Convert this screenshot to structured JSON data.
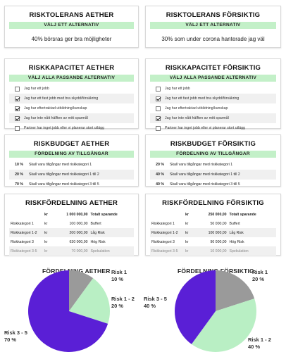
{
  "tolerance": {
    "aether": {
      "title": "RISKTOLERANS AETHER",
      "subtitle": "VÄLJ ETT ALTERNATIV",
      "answer": "40% börsras ger bra möjligheter"
    },
    "forsiktig": {
      "title": "RISKTOLERANS FÖRSIKTIG",
      "subtitle": "VÄLJ ETT ALTERNATIV",
      "answer": "30% som under corona hanterade jag väl"
    }
  },
  "capacity": {
    "aether": {
      "title": "RISKKAPACITET AETHER",
      "subtitle": "VÄLJ ALLA PASSANDE ALTERNATIV",
      "items": [
        {
          "label": "Jag har ett jobb",
          "checked": false
        },
        {
          "label": "Jag har ett fast jobb med bra skydd/försäkring",
          "checked": true
        },
        {
          "label": "Jag har eftertraktad utbildning/kunskap",
          "checked": true
        },
        {
          "label": "Jag har inte nått hälften av mitt sparmål",
          "checked": true
        },
        {
          "label": "Partner har inget jobb eller vi planerar stort utlägg",
          "checked": false
        }
      ]
    },
    "forsiktig": {
      "title": "RISKKAPACITET FÖRSIKTIG",
      "subtitle": "VÄLJ ALLA PASSANDE ALTERNATIV",
      "items": [
        {
          "label": "Jag har ett jobb",
          "checked": false
        },
        {
          "label": "Jag har ett fast jobb med bra skydd/försäkring",
          "checked": true
        },
        {
          "label": "Jag har eftertraktad utbildning/kunskap",
          "checked": false
        },
        {
          "label": "Jag har inte nått hälften av mitt sparmål",
          "checked": true
        },
        {
          "label": "Partner har inget jobb eller vi planerar stort utlägg",
          "checked": false
        }
      ]
    }
  },
  "budget": {
    "aether": {
      "title": "RISKBUDGET AETHER",
      "subtitle": "FÖRDELNING AV TILLGÅNGAR",
      "rows": [
        {
          "pct": "10 %",
          "text": "Skall vara tillgångar med riskkategori 1"
        },
        {
          "pct": "20 %",
          "text": "Skall vara tillgångar med riskkategori 1 till 2"
        },
        {
          "pct": "70 %",
          "text": "Skall vara tillgångar med riskkategori 3 till 5"
        }
      ]
    },
    "forsiktig": {
      "title": "RISKBUDGET FÖRSIKTIG",
      "subtitle": "FÖRDELNING AV TILLGÅNGAR",
      "rows": [
        {
          "pct": "20 %",
          "text": "Skall vara tillgångar med riskkategori 1"
        },
        {
          "pct": "40 %",
          "text": "Skall vara tillgångar med riskkategori 1 till 2"
        },
        {
          "pct": "40 %",
          "text": "Skall vara tillgångar med riskkategori 3 till 5"
        }
      ]
    }
  },
  "distribution": {
    "aether": {
      "title": "RISKFÖRDELNING AETHER",
      "header": {
        "unit": "kr",
        "amount": "1 000 000,00",
        "label": "Totalt sparande"
      },
      "rows": [
        {
          "cat": "Riskkategori 1",
          "unit": "kr",
          "amount": "100 000,00",
          "desc": "Buffert"
        },
        {
          "cat": "Riskkategori 1-2",
          "unit": "kr",
          "amount": "200 000,00",
          "desc": "Låg Risk"
        },
        {
          "cat": "Riskkategori 3",
          "unit": "kr",
          "amount": "630 000,00",
          "desc": "Hög Risk"
        },
        {
          "cat": "Riskkategori 3-5",
          "unit": "kr",
          "amount": "70 000,00",
          "desc": "Spekulation"
        }
      ]
    },
    "forsiktig": {
      "title": "RISKFÖRDELNING FÖRSIKTIG",
      "header": {
        "unit": "kr",
        "amount": "250 000,00",
        "label": "Totalt sparande"
      },
      "rows": [
        {
          "cat": "Riskkategori 1",
          "unit": "kr",
          "amount": "50 000,00",
          "desc": "Buffert"
        },
        {
          "cat": "Riskkategori 1-2",
          "unit": "kr",
          "amount": "100 000,00",
          "desc": "Låg Risk"
        },
        {
          "cat": "Riskkategori 3",
          "unit": "kr",
          "amount": "90 000,00",
          "desc": "Hög Risk"
        },
        {
          "cat": "Riskkategori 3-5",
          "unit": "kr",
          "amount": "10 000,00",
          "desc": "Spekulation"
        }
      ]
    }
  },
  "colors": {
    "risk1": "#9a9a9a",
    "risk12": "#b9efc4",
    "risk35": "#5a1fd6",
    "accent": "#c3f0c8"
  },
  "chart_data": [
    {
      "type": "pie",
      "title": "FÖRDELNING AETHER",
      "labels": [
        "Risk 1",
        "Risk 1 - 2",
        "Risk 3 - 5"
      ],
      "values": [
        10,
        20,
        70
      ],
      "value_labels": [
        "10 %",
        "20 %",
        "70 %"
      ]
    },
    {
      "type": "pie",
      "title": "FÖRDELNING FÖRSIKTIG",
      "labels": [
        "Risk 1",
        "Risk 1 - 2",
        "Risk 3 - 5"
      ],
      "values": [
        20,
        40,
        40
      ],
      "value_labels": [
        "20 %",
        "40 %",
        "40 %"
      ]
    }
  ]
}
